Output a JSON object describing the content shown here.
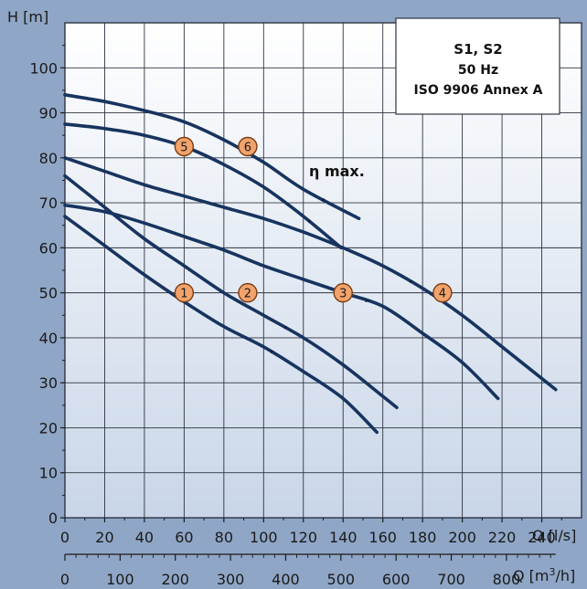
{
  "colors": {
    "background": "#8fa6c6",
    "plot_top": "#ffffff",
    "plot_bottom": "#c9d6e8",
    "grid": "#2f3442",
    "curve": "#17345f",
    "label_fill": "#f2a36b",
    "label_stroke": "#7a3b12"
  },
  "chart_data": {
    "type": "line",
    "title": "",
    "legend": {
      "lines": [
        "S1, S2",
        "50 Hz",
        "ISO 9906 Annex A"
      ],
      "placement": "top-right"
    },
    "ylabel": "H [m]",
    "xlabel": "Q [l/s]",
    "x2label": "Q [m³/h]",
    "xlim": [
      0,
      260
    ],
    "ylim": [
      0,
      110
    ],
    "x_ticks": [
      0,
      20,
      40,
      60,
      80,
      100,
      120,
      140,
      160,
      180,
      200,
      220,
      240
    ],
    "x2_ticks": [
      0,
      100,
      200,
      300,
      400,
      500,
      600,
      700,
      800
    ],
    "y_ticks": [
      0,
      10,
      20,
      30,
      40,
      50,
      60,
      70,
      80,
      90,
      100
    ],
    "grid": true,
    "annotation": "η max.",
    "series": [
      {
        "name": "1",
        "x": [
          0,
          20,
          40,
          60,
          80,
          100,
          120,
          140,
          157
        ],
        "y": [
          67,
          60.5,
          54,
          48,
          42.5,
          38,
          32.5,
          26.5,
          19
        ],
        "label_at": [
          60,
          50
        ],
        "eta_max": [
          104,
          38
        ]
      },
      {
        "name": "2",
        "x": [
          0,
          20,
          40,
          60,
          80,
          100,
          120,
          140,
          160,
          167
        ],
        "y": [
          76,
          69,
          62,
          56,
          50,
          45,
          40,
          34,
          27,
          24.5
        ],
        "label_at": [
          92,
          50
        ],
        "eta_max": [
          111,
          44
        ]
      },
      {
        "name": "3",
        "x": [
          0,
          20,
          40,
          60,
          80,
          100,
          120,
          140,
          160,
          180,
          200,
          218
        ],
        "y": [
          69.5,
          68,
          65.5,
          62.5,
          59.5,
          56,
          53,
          50,
          47,
          41,
          34.5,
          26.5
        ],
        "label_at": [
          140,
          50
        ],
        "eta_max": [
          152,
          48
        ]
      },
      {
        "name": "4",
        "x": [
          0,
          20,
          40,
          60,
          80,
          100,
          120,
          140,
          160,
          180,
          200,
          220,
          247
        ],
        "y": [
          80,
          77,
          74,
          71.5,
          69,
          66.5,
          63.5,
          60,
          56,
          51,
          45,
          38,
          28.5
        ],
        "label_at": [
          190,
          50
        ],
        "eta_max": [
          174,
          54.5
        ]
      },
      {
        "name": "5",
        "x": [
          0,
          20,
          40,
          60,
          80,
          100,
          120,
          139
        ],
        "y": [
          87.5,
          86.5,
          85,
          82.5,
          78.5,
          73.5,
          67,
          60
        ],
        "label_at": [
          60,
          82.5
        ],
        "eta_max": [
          123,
          66.5
        ]
      },
      {
        "name": "6",
        "x": [
          0,
          20,
          40,
          60,
          80,
          100,
          120,
          148
        ],
        "y": [
          94,
          92.5,
          90.5,
          88,
          84,
          79,
          73,
          66.5
        ],
        "label_at": [
          92,
          82.5
        ],
        "eta_max": [
          130,
          72.5
        ]
      }
    ]
  }
}
